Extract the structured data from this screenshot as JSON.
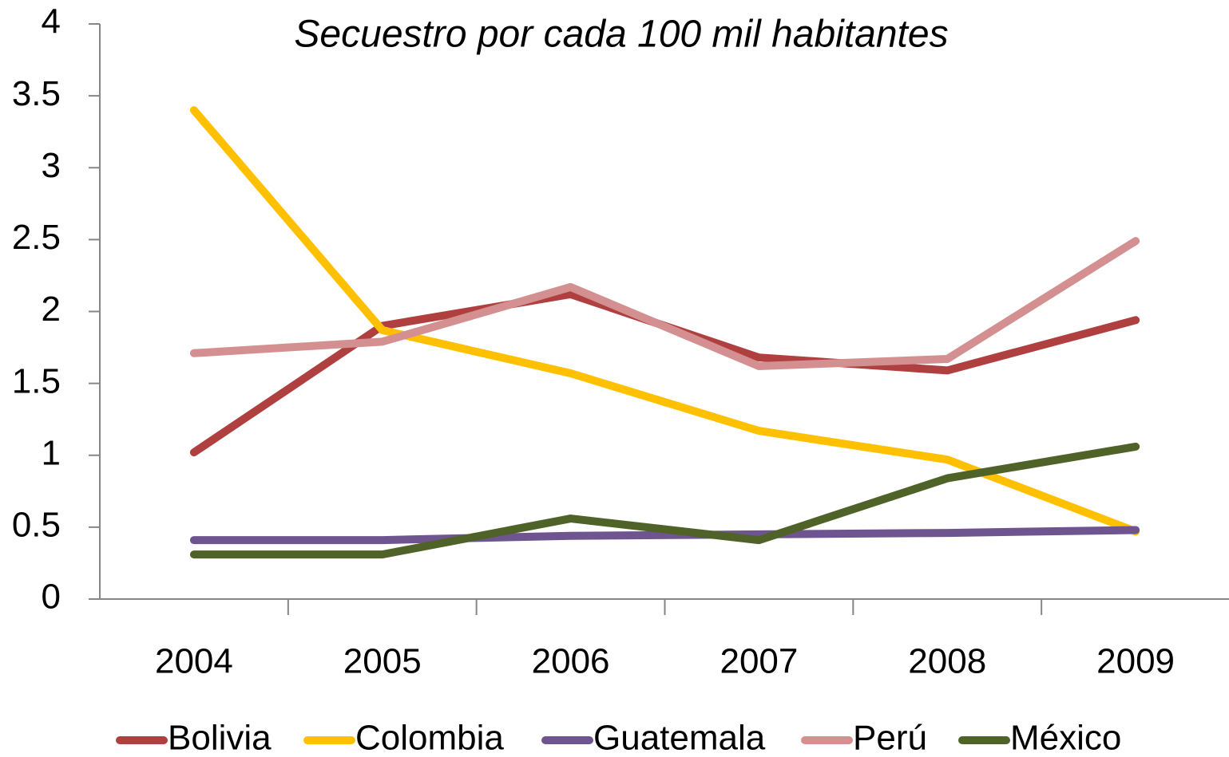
{
  "chart_data": {
    "type": "line",
    "title": "Secuestro por cada 100 mil habitantes",
    "categories": [
      "2004",
      "2005",
      "2006",
      "2007",
      "2008",
      "2009"
    ],
    "series": [
      {
        "name": "Bolivia",
        "color": "#b04040",
        "values": [
          1.02,
          1.9,
          2.12,
          1.68,
          1.59,
          1.94
        ]
      },
      {
        "name": "Colombia",
        "color": "#ffc000",
        "values": [
          3.4,
          1.87,
          1.57,
          1.17,
          0.97,
          0.47
        ]
      },
      {
        "name": "Guatemala",
        "color": "#6f558f",
        "values": [
          0.41,
          0.41,
          0.44,
          0.45,
          0.46,
          0.48
        ]
      },
      {
        "name": "Perú",
        "color": "#d49090",
        "values": [
          1.71,
          1.79,
          2.17,
          1.62,
          1.67,
          2.49
        ]
      },
      {
        "name": "México",
        "color": "#4f6228",
        "values": [
          0.31,
          0.31,
          0.56,
          0.41,
          0.84,
          1.06
        ]
      }
    ],
    "ylim": [
      0,
      4
    ],
    "yticks": [
      0,
      0.5,
      1,
      1.5,
      2,
      2.5,
      3,
      3.5,
      4
    ],
    "legend": "bottom"
  }
}
